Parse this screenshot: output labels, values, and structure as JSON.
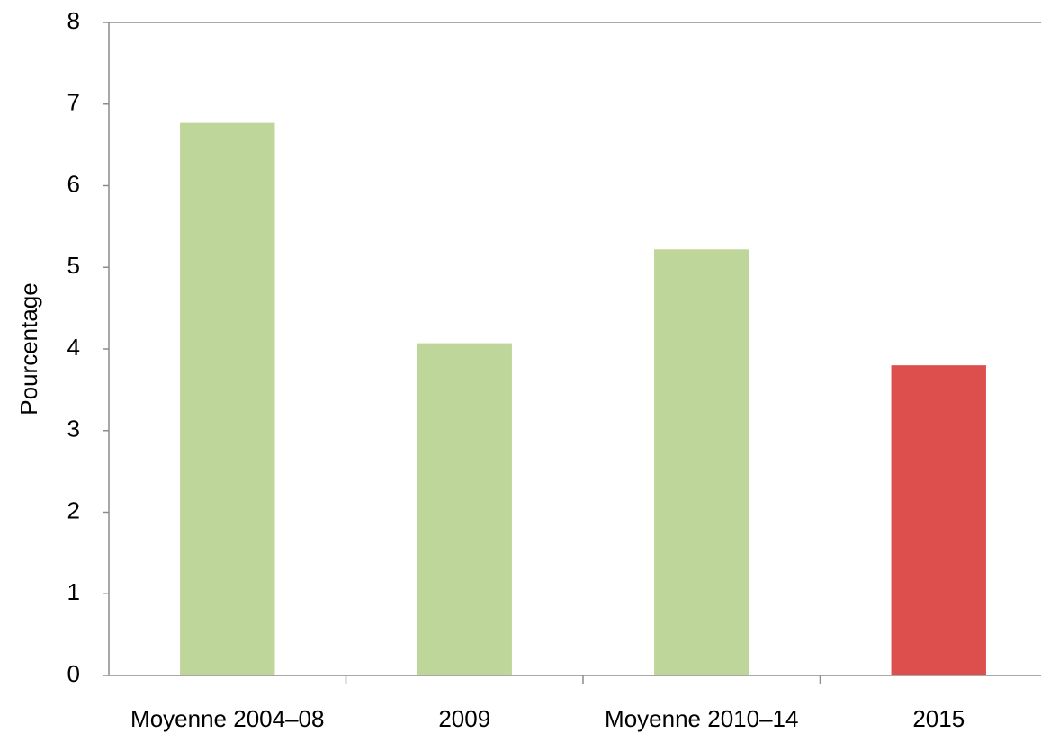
{
  "chart_data": {
    "type": "bar",
    "y_label": "Pourcentage",
    "categories": [
      "Moyenne 2004–08",
      "2009",
      "Moyenne 2010–14",
      "2015"
    ],
    "values": [
      6.77,
      4.07,
      5.22,
      3.8
    ],
    "colors": [
      "#bed69a",
      "#bed69a",
      "#bed69a",
      "#dc4f4d"
    ],
    "ylim": [
      0,
      8
    ],
    "yticks": [
      0,
      1,
      2,
      3,
      4,
      5,
      6,
      7,
      8
    ],
    "grid": false
  }
}
